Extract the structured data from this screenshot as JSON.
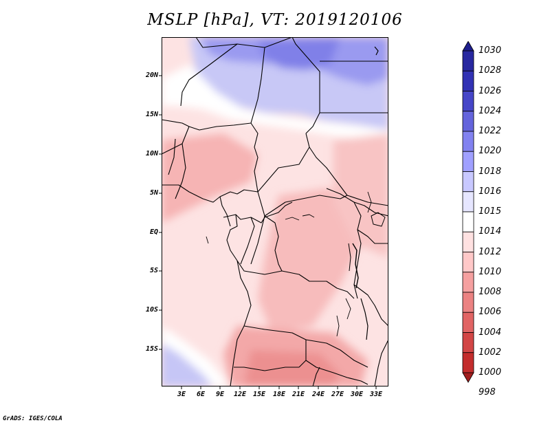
{
  "title": "MSLP [hPa], VT: 2019120106",
  "credit": "GrADS: IGES/COLA",
  "map": {
    "region": "Central Africa",
    "y_ticks": [
      "20N",
      "15N",
      "10N",
      "5N",
      "EQ",
      "5S",
      "10S",
      "15S"
    ],
    "x_ticks": [
      "3E",
      "6E",
      "9E",
      "12E",
      "15E",
      "18E",
      "21E",
      "24E",
      "27E",
      "30E",
      "33E"
    ]
  },
  "colorbar": {
    "unit": "hPa",
    "levels": [
      "1030",
      "1028",
      "1026",
      "1024",
      "1022",
      "1020",
      "1018",
      "1016",
      "1015",
      "1014",
      "1012",
      "1010",
      "1008",
      "1006",
      "1004",
      "1002",
      "1000",
      "998"
    ],
    "colors": [
      "#1e1e8c",
      "#2828a0",
      "#3232b4",
      "#4646c8",
      "#6464dc",
      "#8282f0",
      "#a0a0ff",
      "#c8c8ff",
      "#e6e6ff",
      "#ffffff",
      "#ffe1e1",
      "#ffc8c8",
      "#f5a0a0",
      "#eb8282",
      "#e16464",
      "#d24646",
      "#c32d2d",
      "#a01e1e"
    ]
  }
}
